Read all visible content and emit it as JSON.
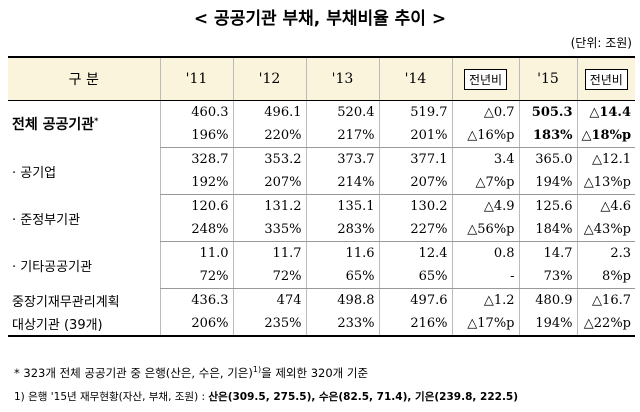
{
  "title": "< 공공기관 부채, 부채비율 추이 >",
  "unit": "(단위: 조원)",
  "table": {
    "header": {
      "category": "구 분",
      "y11": "'11",
      "y12": "'12",
      "y13": "'13",
      "y14": "'14",
      "chg14": "전년비",
      "y15": "'15",
      "chg15": "전년비"
    },
    "rows": [
      {
        "label": "전체 공공기관",
        "label_sup": "*",
        "debt": [
          "460.3",
          "496.1",
          "520.4",
          "519.7",
          "△0.7",
          "505.3",
          "△14.4"
        ],
        "ratio": [
          "196%",
          "220%",
          "217%",
          "201%",
          "△16%p",
          "183%",
          "△18%p"
        ]
      },
      {
        "label": "· 공기업",
        "debt": [
          "328.7",
          "353.2",
          "373.7",
          "377.1",
          "3.4",
          "365.0",
          "△12.1"
        ],
        "ratio": [
          "192%",
          "207%",
          "214%",
          "207%",
          "△7%p",
          "194%",
          "△13%p"
        ]
      },
      {
        "label": "· 준정부기관",
        "debt": [
          "120.6",
          "131.2",
          "135.1",
          "130.2",
          "△4.9",
          "125.6",
          "△4.6"
        ],
        "ratio": [
          "248%",
          "335%",
          "283%",
          "227%",
          "△56%p",
          "184%",
          "△43%p"
        ]
      },
      {
        "label": "· 기타공공기관",
        "debt": [
          "11.0",
          "11.7",
          "11.6",
          "12.4",
          "0.8",
          "14.7",
          "2.3"
        ],
        "ratio": [
          "72%",
          "72%",
          "65%",
          "65%",
          "-",
          "73%",
          "8%p"
        ]
      },
      {
        "label_line1": "중장기재무관리계획",
        "label_line2": "대상기관 (39개)",
        "debt": [
          "436.3",
          "474",
          "498.8",
          "497.6",
          "△1.2",
          "480.9",
          "△16.7"
        ],
        "ratio": [
          "206%",
          "235%",
          "233%",
          "216%",
          "△17%p",
          "194%",
          "△22%p"
        ]
      }
    ]
  },
  "notes": {
    "note1_prefix": "* 323개 전체 공공기관 중 은행(산은, 수은, 기은)",
    "note1_sup": "1)",
    "note1_suffix": "을 제외한 320개 기준",
    "note2_prefix": "1) 은행 '15년 재무현황(자산, 부채, 조원) : ",
    "note2_san": "산은(309.5, 275.5), ",
    "note2_su": "수은(82.5, 71.4), ",
    "note2_gi": "기은(239.8, 222.5)"
  }
}
